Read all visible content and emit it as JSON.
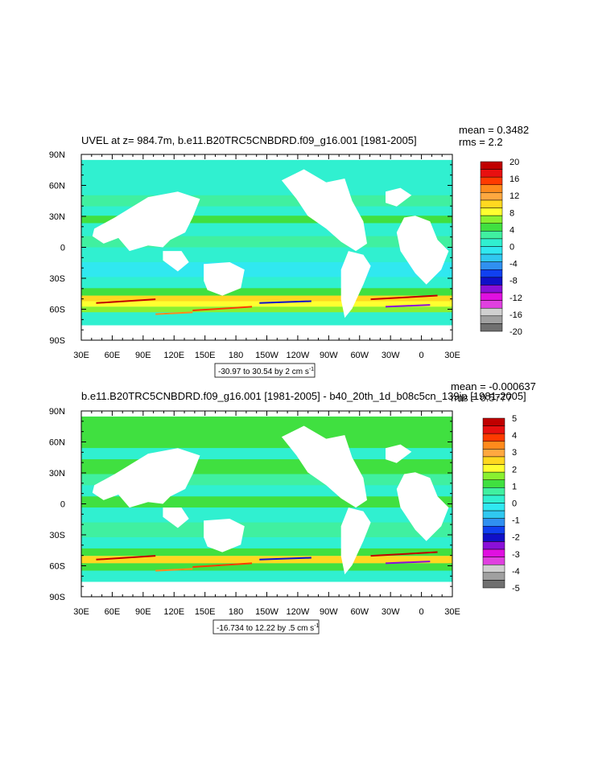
{
  "chart_data": [
    {
      "type": "heatmap",
      "title": "UVEL at z= 984.7m, b.e11.B20TRC5CNBDRD.f09_g16.001 [1981-2005]",
      "stats": [
        "mean = 0.3482",
        "rms = 2.2"
      ],
      "x_ticks": [
        "30E",
        "60E",
        "90E",
        "120E",
        "150E",
        "180",
        "150W",
        "120W",
        "90W",
        "60W",
        "30W",
        "0",
        "30E"
      ],
      "y_ticks": [
        "90N",
        "60N",
        "30N",
        "0",
        "30S",
        "60S",
        "90S"
      ],
      "colorbar_labels": [
        "20",
        "16",
        "12",
        "8",
        "4",
        "0",
        "-4",
        "-8",
        "-12",
        "-16",
        "-20"
      ],
      "colorbar_colors": [
        "#c00000",
        "#e81010",
        "#ff3a00",
        "#ff8a1c",
        "#ffa840",
        "#ffd820",
        "#ffff30",
        "#8af030",
        "#40e040",
        "#40f0a0",
        "#30f0d0",
        "#30e8f0",
        "#30c8f0",
        "#3090f0",
        "#1040f0",
        "#1010c8",
        "#8a10d8",
        "#e010e0",
        "#e040e0",
        "#d0d0d0",
        "#a0a0a0",
        "#707070"
      ],
      "contour_info": "-30.97 to 30.54 by 2 cm s",
      "contour_info_exp": "-1"
    },
    {
      "type": "heatmap",
      "title": "b.e11.B20TRC5CNBDRD.f09_g16.001 [1981-2005] - b40_20th_1d_b08c5cn_139jp [1981-2005]",
      "stats": [
        "mean = -0.000637",
        "rms = 0.5777"
      ],
      "x_ticks": [
        "30E",
        "60E",
        "90E",
        "120E",
        "150E",
        "180",
        "150W",
        "120W",
        "90W",
        "60W",
        "30W",
        "0",
        "30E"
      ],
      "y_ticks": [
        "90N",
        "60N",
        "30N",
        "0",
        "30S",
        "60S",
        "90S"
      ],
      "colorbar_labels": [
        "5",
        "4",
        "3",
        "2",
        "1",
        "0",
        "-1",
        "-2",
        "-3",
        "-4",
        "-5"
      ],
      "colorbar_colors": [
        "#c00000",
        "#e81010",
        "#ff3a00",
        "#ff8a1c",
        "#ffa840",
        "#ffd820",
        "#ffff30",
        "#8af030",
        "#40e040",
        "#40f0a0",
        "#30f0d0",
        "#30e8f0",
        "#30c8f0",
        "#3090f0",
        "#1040f0",
        "#1010c8",
        "#8a10d8",
        "#e010e0",
        "#e040e0",
        "#d0d0d0",
        "#a0a0a0",
        "#707070"
      ],
      "contour_info": "-16.734 to 12.22 by .5 cm s",
      "contour_info_exp": "-1"
    }
  ]
}
